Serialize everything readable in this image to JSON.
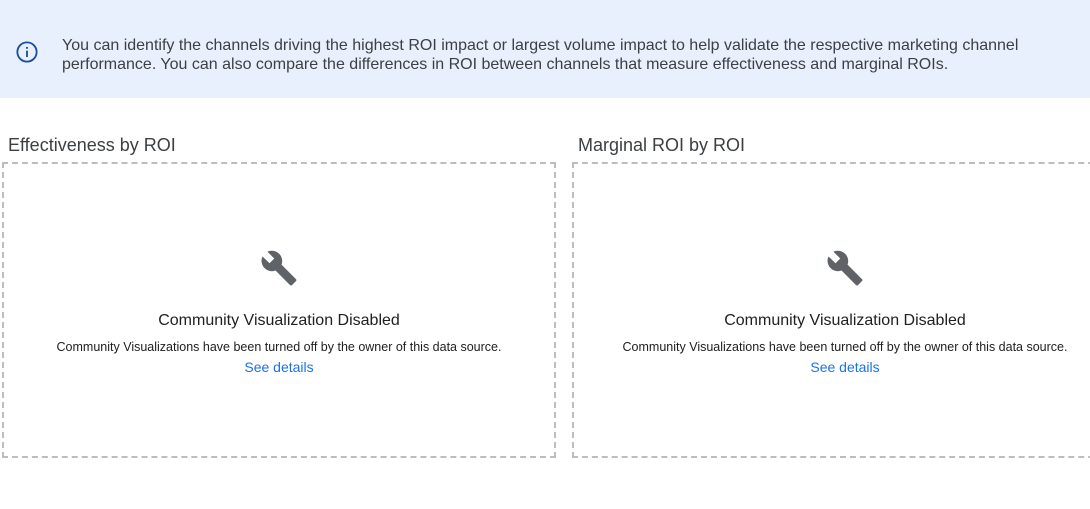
{
  "banner": {
    "icon": "info-icon",
    "text": "You can identify the channels driving the highest ROI impact or largest volume impact to help validate the respective marketing channel performance. You can also compare the differences in ROI between channels that measure effectiveness and marginal ROIs."
  },
  "panels": [
    {
      "title": "Effectiveness by ROI",
      "icon": "wrench-icon",
      "heading": "Community Visualization Disabled",
      "message": "Community Visualizations have been turned off by the owner of this data source.",
      "link": "See details"
    },
    {
      "title": "Marginal ROI by ROI",
      "icon": "wrench-icon",
      "heading": "Community Visualization Disabled",
      "message": "Community Visualizations have been turned off by the owner of this data source.",
      "link": "See details"
    }
  ],
  "colors": {
    "banner_bg": "#e8f0fe",
    "link": "#1a73e8",
    "icon_blue": "#1a4f9c",
    "wrench": "#5f6368"
  }
}
